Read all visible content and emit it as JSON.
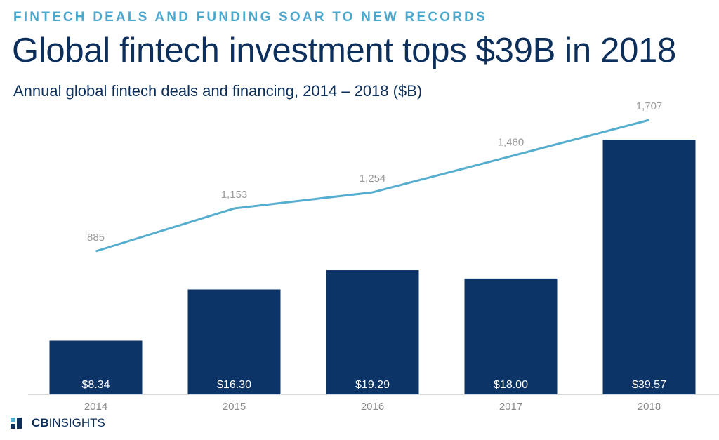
{
  "header": {
    "kicker": "FINTECH DEALS AND FUNDING SOAR TO NEW RECORDS",
    "title": "Global fintech investment tops $39B in 2018",
    "subtitle": "Annual global fintech deals and financing, 2014 – 2018 ($B)"
  },
  "logo": {
    "cb": "CB",
    "insights": "INSIGHTS"
  },
  "colors": {
    "bar": "#0d3466",
    "line": "#55aecf",
    "bar_label": "#ffffff",
    "line_label": "#9a9a9a",
    "axis_label": "#8a8a8a",
    "baseline": "#d9d9d9"
  },
  "chart_data": {
    "type": "bar",
    "categories": [
      "2014",
      "2015",
      "2016",
      "2017",
      "2018"
    ],
    "series": [
      {
        "type": "bar",
        "values": [
          8.34,
          16.3,
          19.29,
          18.0,
          39.57
        ],
        "labels": [
          "$8.34",
          "$16.30",
          "$19.29",
          "$18.00",
          "$39.57"
        ]
      },
      {
        "type": "line",
        "values": [
          885,
          1153,
          1254,
          1480,
          1707
        ],
        "labels": [
          "885",
          "1,153",
          "1,254",
          "1,480",
          "1,707"
        ]
      }
    ],
    "grid": false,
    "legend": "none"
  }
}
